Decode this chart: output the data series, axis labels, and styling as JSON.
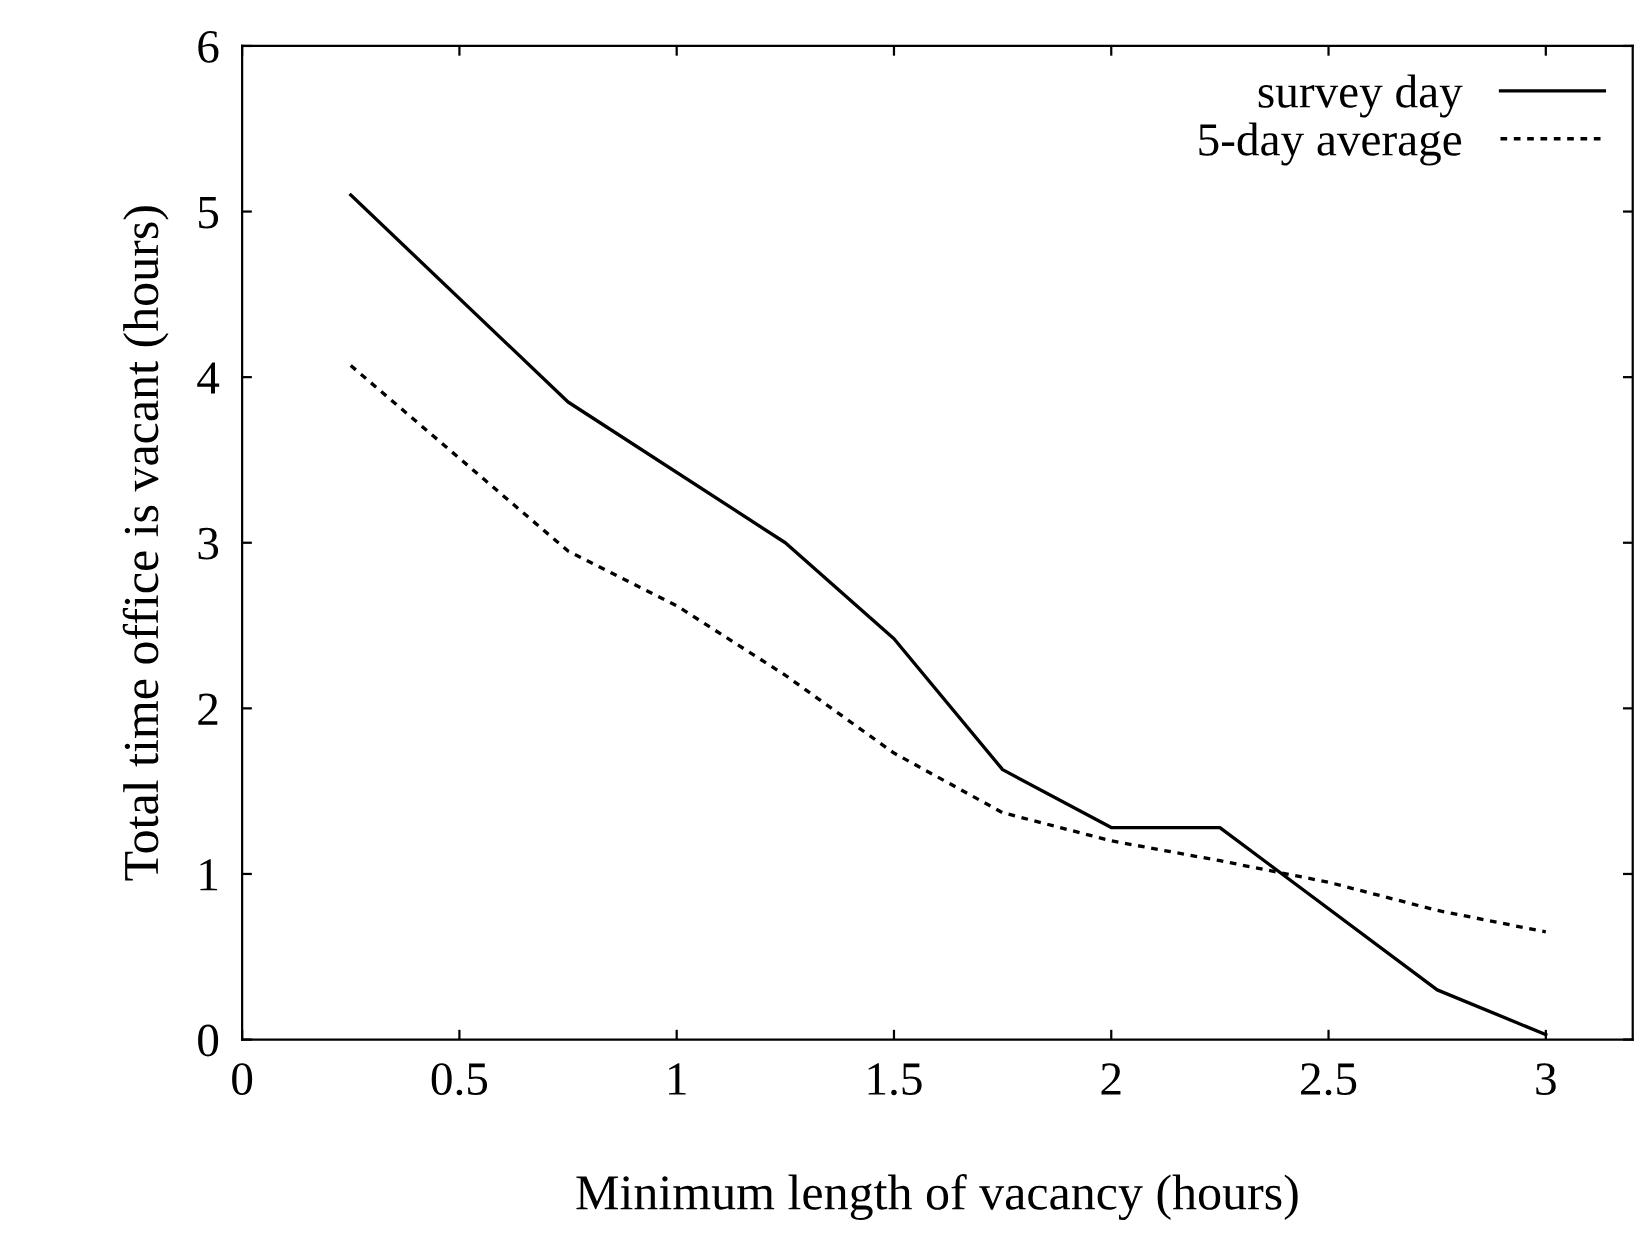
{
  "chart_data": {
    "type": "line",
    "xlabel": "Minimum length of vacancy (hours)",
    "ylabel": "Total time office is vacant (hours)",
    "xlim": [
      0,
      3.2
    ],
    "xticks": [
      0,
      0.5,
      1,
      1.5,
      2,
      2.5,
      3
    ],
    "ylim": [
      0,
      6
    ],
    "yticks": [
      0,
      1,
      2,
      3,
      4,
      5,
      6
    ],
    "series": [
      {
        "name": "survey day",
        "color": "#000000",
        "line_style": "solid",
        "x": [
          0.25,
          0.75,
          1.25,
          1.5,
          1.75,
          2.0,
          2.25,
          2.75,
          3.0
        ],
        "values": [
          5.1,
          3.85,
          3.0,
          2.42,
          1.63,
          1.28,
          1.28,
          0.3,
          0.03
        ]
      },
      {
        "name": "5-day average",
        "color": "#000000",
        "line_style": "dotted",
        "x": [
          0.25,
          0.75,
          1.0,
          1.25,
          1.5,
          1.75,
          2.0,
          2.25,
          2.5,
          2.75,
          3.0
        ],
        "values": [
          4.07,
          2.95,
          2.62,
          2.2,
          1.73,
          1.37,
          1.2,
          1.08,
          0.95,
          0.78,
          0.65
        ]
      }
    ],
    "legend": "top right",
    "grid": false,
    "marker": "none"
  }
}
